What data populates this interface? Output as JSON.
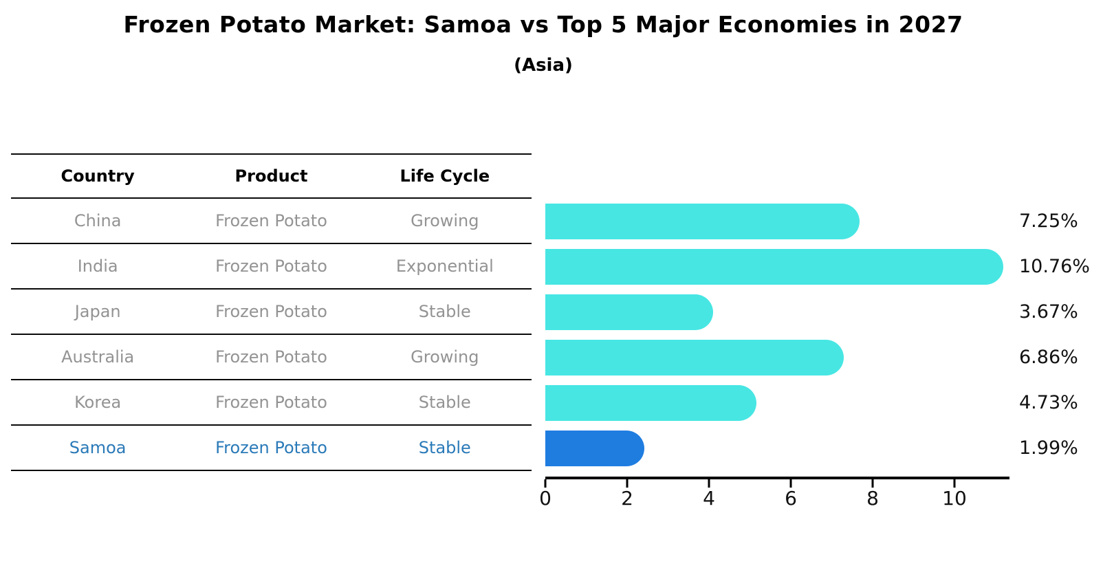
{
  "chart_data": {
    "type": "bar",
    "orientation": "horizontal",
    "title": "Frozen Potato Market: Samoa vs Top 5 Major Economies in 2027",
    "subtitle": "(Asia)",
    "table_headers": [
      "Country",
      "Product",
      "Life Cycle"
    ],
    "rows": [
      {
        "country": "China",
        "product": "Frozen Potato",
        "life_cycle": "Growing",
        "value": 7.25,
        "label": "7.25%",
        "highlight": false
      },
      {
        "country": "India",
        "product": "Frozen Potato",
        "life_cycle": "Exponential",
        "value": 10.76,
        "label": "10.76%",
        "highlight": false
      },
      {
        "country": "Japan",
        "product": "Frozen Potato",
        "life_cycle": "Stable",
        "value": 3.67,
        "label": "3.67%",
        "highlight": false
      },
      {
        "country": "Australia",
        "product": "Frozen Potato",
        "life_cycle": "Growing",
        "value": 6.86,
        "label": "6.86%",
        "highlight": false
      },
      {
        "country": "Korea",
        "product": "Frozen Potato",
        "life_cycle": "Stable",
        "value": 4.73,
        "label": "4.73%",
        "highlight": false
      },
      {
        "country": "Samoa",
        "product": "Frozen Potato",
        "life_cycle": "Stable",
        "value": 1.99,
        "label": "1.99%",
        "highlight": true
      }
    ],
    "x_ticks": [
      "0",
      "2",
      "4",
      "6",
      "8",
      "10"
    ],
    "xlim": [
      0,
      11.35
    ],
    "grid": false,
    "legend_position": "none",
    "colors": {
      "bar": "#47E6E3",
      "highlight_bar": "#1F7DE0",
      "highlight_text": "#2A7AB8",
      "row_text": "#939393",
      "header_text": "#000000",
      "axis": "#000000",
      "value_label": "#111111"
    }
  }
}
